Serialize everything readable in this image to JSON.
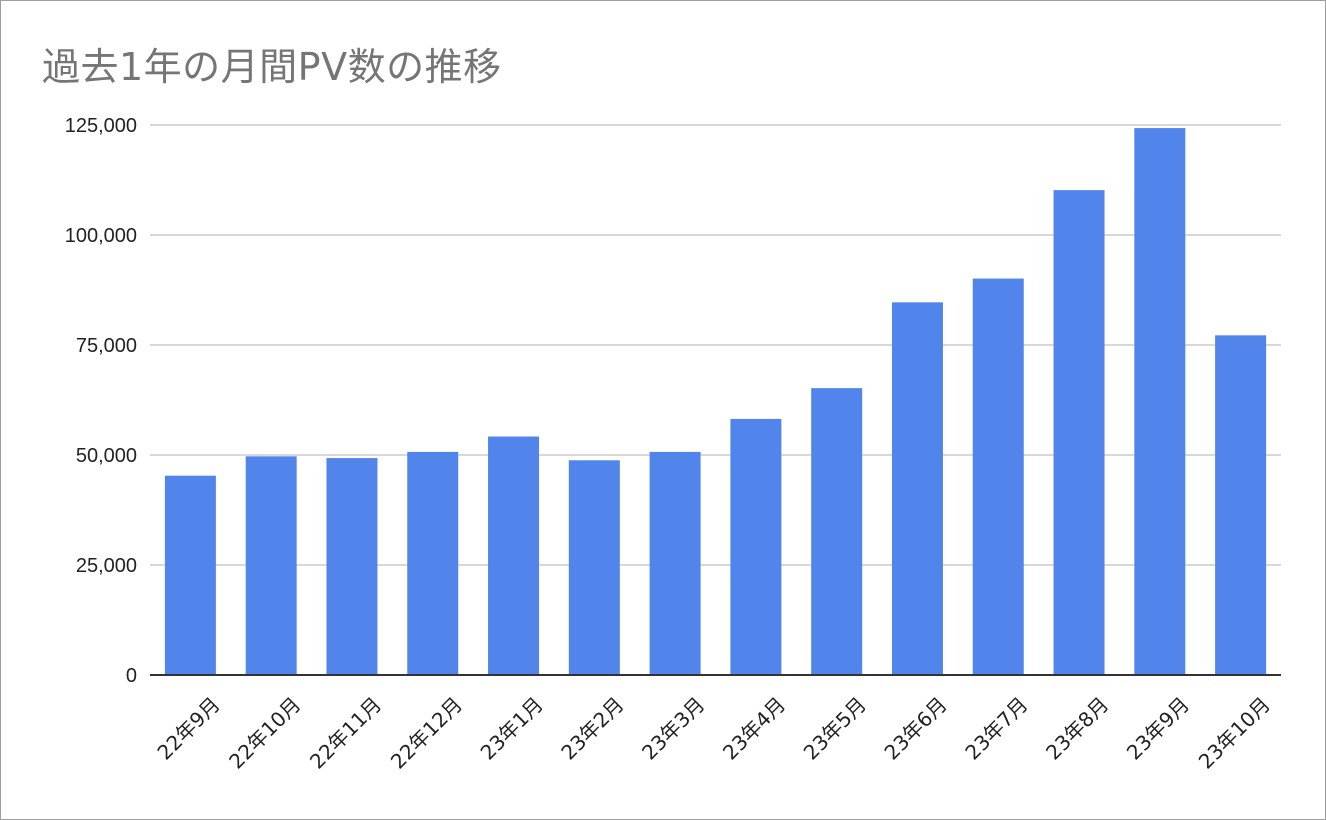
{
  "chart_data": {
    "type": "bar",
    "title": "過去1年の月間PV数の推移",
    "xlabel": "",
    "ylabel": "",
    "categories": [
      "22年9月",
      "22年10月",
      "22年11月",
      "22年12月",
      "23年1月",
      "23年2月",
      "23年3月",
      "23年4月",
      "23年5月",
      "23年6月",
      "23年7月",
      "23年8月",
      "23年9月",
      "23年10月"
    ],
    "values": [
      45300,
      49700,
      49300,
      50700,
      54200,
      48800,
      50700,
      58200,
      65200,
      84700,
      90100,
      110200,
      124300,
      77200
    ],
    "ylim": [
      0,
      125000
    ],
    "yticks": [
      0,
      25000,
      50000,
      75000,
      100000,
      125000
    ],
    "ytick_labels": [
      "0",
      "25,000",
      "50,000",
      "75,000",
      "100,000",
      "125,000"
    ],
    "grid": true,
    "bar_color": "#5285EC",
    "gridline_color": "#CCCCCC",
    "axis_color": "#333333",
    "title_color": "#757575"
  }
}
